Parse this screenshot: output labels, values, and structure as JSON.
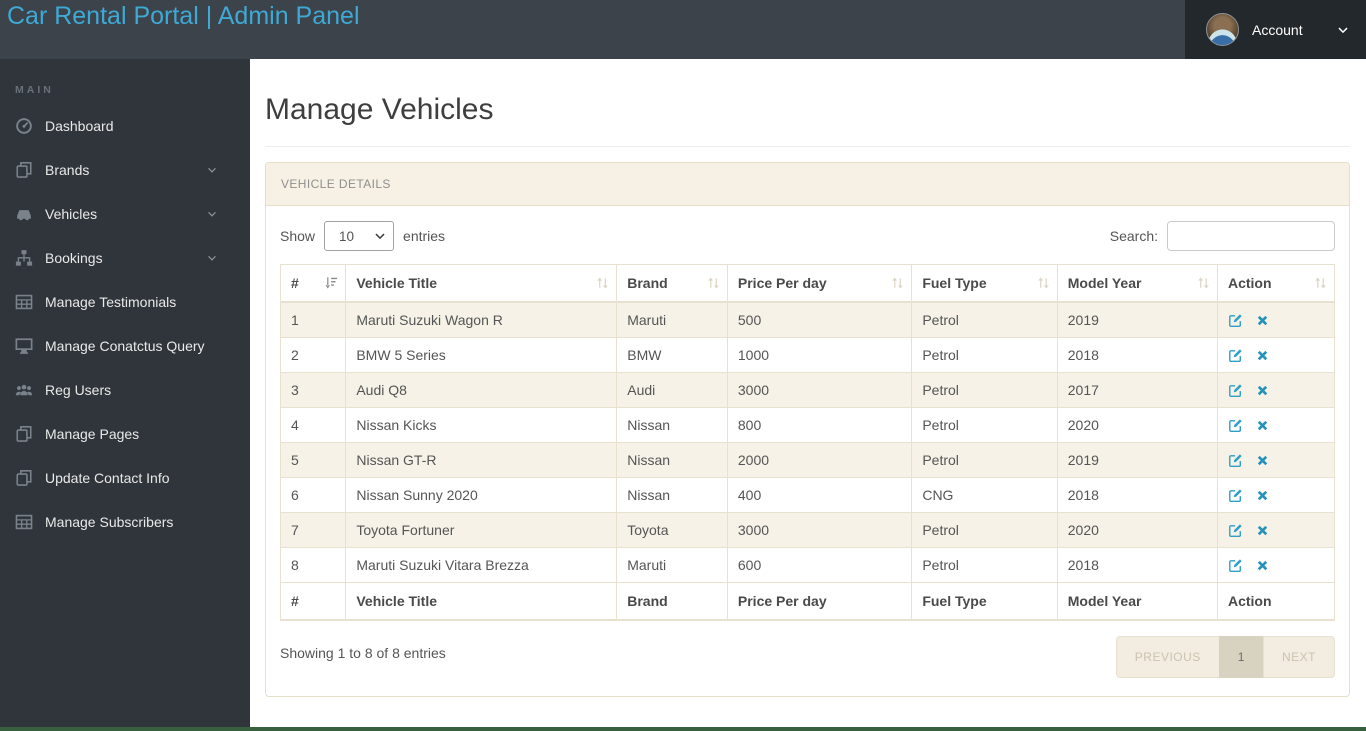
{
  "navbar": {
    "brand": "Car Rental Portal | Admin Panel",
    "account_label": "Account"
  },
  "sidebar": {
    "section_label": "MAIN",
    "items": [
      {
        "label": "Dashboard",
        "icon": "dashboard",
        "has_submenu": false
      },
      {
        "label": "Brands",
        "icon": "copy",
        "has_submenu": true
      },
      {
        "label": "Vehicles",
        "icon": "car",
        "has_submenu": true
      },
      {
        "label": "Bookings",
        "icon": "sitemap",
        "has_submenu": true
      },
      {
        "label": "Manage Testimonials",
        "icon": "table",
        "has_submenu": false
      },
      {
        "label": "Manage Conatctus Query",
        "icon": "desktop",
        "has_submenu": false
      },
      {
        "label": "Reg Users",
        "icon": "users",
        "has_submenu": false
      },
      {
        "label": "Manage Pages",
        "icon": "copy",
        "has_submenu": false
      },
      {
        "label": "Update Contact Info",
        "icon": "copy",
        "has_submenu": false
      },
      {
        "label": "Manage Subscribers",
        "icon": "table",
        "has_submenu": false
      }
    ]
  },
  "page": {
    "title": "Manage Vehicles"
  },
  "panel": {
    "title": "VEHICLE DETAILS"
  },
  "table_controls": {
    "show_label": "Show",
    "entries_label": "entries",
    "page_size": "10",
    "search_label": "Search:",
    "search_value": ""
  },
  "table": {
    "columns": [
      "#",
      "Vehicle Title",
      "Brand",
      "Price Per day",
      "Fuel Type",
      "Model Year",
      "Action"
    ],
    "column_widths": [
      "6.2%",
      "25.7%",
      "10.5%",
      "17.5%",
      "13.8%",
      "15.2%",
      "11.1%"
    ],
    "sorted_column_index": 0,
    "rows": [
      {
        "num": "1",
        "title": "Maruti Suzuki Wagon R",
        "brand": "Maruti",
        "price": "500",
        "fuel": "Petrol",
        "year": "2019"
      },
      {
        "num": "2",
        "title": "BMW 5 Series",
        "brand": "BMW",
        "price": "1000",
        "fuel": "Petrol",
        "year": "2018"
      },
      {
        "num": "3",
        "title": "Audi Q8",
        "brand": "Audi",
        "price": "3000",
        "fuel": "Petrol",
        "year": "2017"
      },
      {
        "num": "4",
        "title": "Nissan Kicks",
        "brand": "Nissan",
        "price": "800",
        "fuel": "Petrol",
        "year": "2020"
      },
      {
        "num": "5",
        "title": "Nissan GT-R",
        "brand": "Nissan",
        "price": "2000",
        "fuel": "Petrol",
        "year": "2019"
      },
      {
        "num": "6",
        "title": "Nissan Sunny 2020",
        "brand": "Nissan",
        "price": "400",
        "fuel": "CNG",
        "year": "2018"
      },
      {
        "num": "7",
        "title": "Toyota Fortuner",
        "brand": "Toyota",
        "price": "3000",
        "fuel": "Petrol",
        "year": "2020"
      },
      {
        "num": "8",
        "title": "Maruti Suzuki Vitara Brezza",
        "brand": "Maruti",
        "price": "600",
        "fuel": "Petrol",
        "year": "2018"
      }
    ]
  },
  "footer": {
    "info": "Showing 1 to 8 of 8 entries",
    "pagination": {
      "previous": "PREVIOUS",
      "current": "1",
      "next": "NEXT"
    }
  },
  "colors": {
    "navbar_bg": "#3C434A",
    "brand_text": "#3FA9D5",
    "account_bg": "#23282D",
    "sidebar_bg": "#2F353B",
    "panel_header_bg": "#F6F1E4",
    "panel_border": "#E7DFCC",
    "row_stripe": "#F6F2E7",
    "edit_icon": "#2E9FC7",
    "delete_icon": "#2592BA",
    "pagination_active_bg": "#D8D2C0",
    "footer_strip": "#37603F"
  }
}
